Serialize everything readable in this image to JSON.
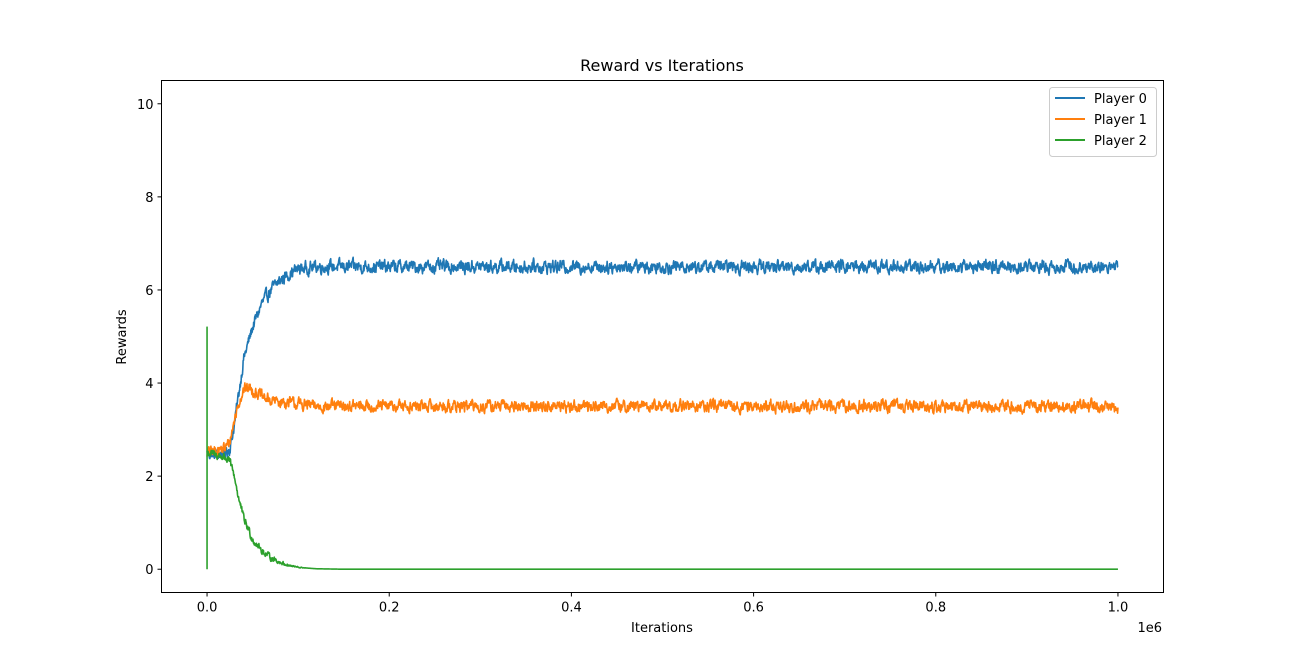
{
  "chart_data": {
    "type": "line",
    "title": "Reward vs Iterations",
    "xlabel": "Iterations",
    "ylabel": "Rewards",
    "x_offset_label": "1e6",
    "xlim": [
      -0.05,
      1.05
    ],
    "ylim": [
      -0.5,
      10.5
    ],
    "x_ticks": [
      0.0,
      0.2,
      0.4,
      0.6,
      0.8,
      1.0
    ],
    "x_tick_labels": [
      "0.0",
      "0.2",
      "0.4",
      "0.6",
      "0.8",
      "1.0"
    ],
    "y_ticks": [
      0,
      2,
      4,
      6,
      8,
      10
    ],
    "y_tick_labels": [
      "0",
      "2",
      "4",
      "6",
      "8",
      "10"
    ],
    "grid": false,
    "legend_position": "top-right",
    "series": [
      {
        "name": "Player 0",
        "color": "#1f77b4",
        "x": [
          0.0,
          0.01,
          0.02,
          0.025,
          0.03,
          0.035,
          0.04,
          0.05,
          0.06,
          0.07,
          0.08,
          0.09,
          0.1,
          0.12,
          0.14,
          0.2,
          0.4,
          0.6,
          0.8,
          1.0
        ],
        "y": [
          2.5,
          2.45,
          2.5,
          2.6,
          3.1,
          3.8,
          4.5,
          5.2,
          5.7,
          6.0,
          6.2,
          6.35,
          6.45,
          6.5,
          6.5,
          6.5,
          6.5,
          6.5,
          6.5,
          6.5
        ],
        "noise_amplitude": 0.15
      },
      {
        "name": "Player 1",
        "color": "#ff7f0e",
        "x": [
          0.0,
          0.01,
          0.02,
          0.025,
          0.03,
          0.035,
          0.04,
          0.045,
          0.05,
          0.055,
          0.06,
          0.07,
          0.08,
          0.1,
          0.12,
          0.2,
          0.4,
          0.6,
          0.8,
          1.0
        ],
        "y": [
          2.5,
          2.55,
          2.6,
          2.75,
          3.2,
          3.6,
          3.85,
          3.9,
          3.85,
          3.8,
          3.7,
          3.62,
          3.6,
          3.55,
          3.5,
          3.5,
          3.5,
          3.5,
          3.5,
          3.5
        ],
        "noise_amplitude": 0.14
      },
      {
        "name": "Player 2",
        "color": "#2ca02c",
        "x": [
          0.0,
          0.01,
          0.02,
          0.025,
          0.03,
          0.035,
          0.04,
          0.05,
          0.06,
          0.07,
          0.08,
          0.09,
          0.1,
          0.12,
          0.15,
          0.2,
          0.4,
          0.6,
          0.8,
          1.0
        ],
        "y": [
          2.5,
          2.45,
          2.4,
          2.3,
          2.0,
          1.5,
          1.1,
          0.65,
          0.4,
          0.25,
          0.15,
          0.08,
          0.04,
          0.01,
          0.0,
          0.0,
          0.0,
          0.0,
          0.0,
          0.0
        ],
        "noise_amplitude": 0.1,
        "noise_until": 0.05,
        "initial_spike": [
          0.0,
          5.2
        ]
      }
    ]
  }
}
